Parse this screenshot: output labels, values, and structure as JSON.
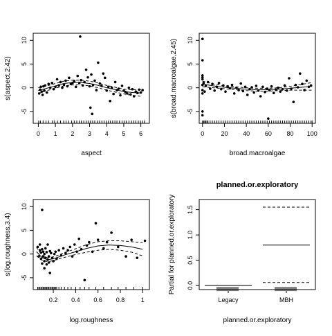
{
  "chart_data": [
    {
      "type": "scatter",
      "title": "",
      "xlabel": "aspect",
      "ylabel": "s(aspect,2.42)",
      "xlim": [
        -0.3,
        6.5
      ],
      "ylim": [
        -7.5,
        11.5
      ],
      "xticks": [
        0,
        1,
        2,
        3,
        4,
        5,
        6
      ],
      "yticks": [
        -5,
        0,
        5,
        10
      ],
      "fit": {
        "x": [
          0,
          0.5,
          1,
          1.5,
          2,
          2.5,
          3,
          3.5,
          4,
          4.5,
          5,
          5.5,
          6
        ],
        "y": [
          -0.6,
          -0.1,
          0.4,
          0.9,
          1.1,
          1.1,
          0.9,
          0.5,
          0.0,
          -0.4,
          -0.8,
          -1.0,
          -1.1
        ]
      },
      "ci_upper": {
        "x": [
          0,
          0.5,
          1,
          1.5,
          2,
          2.5,
          3,
          3.5,
          4,
          4.5,
          5,
          5.5,
          6
        ],
        "y": [
          0.0,
          0.4,
          0.9,
          1.4,
          1.6,
          1.6,
          1.4,
          1.0,
          0.5,
          0.1,
          -0.3,
          -0.4,
          -0.4
        ]
      },
      "ci_lower": {
        "x": [
          0,
          0.5,
          1,
          1.5,
          2,
          2.5,
          3,
          3.5,
          4,
          4.5,
          5,
          5.5,
          6
        ],
        "y": [
          -1.2,
          -0.6,
          -0.1,
          0.4,
          0.6,
          0.6,
          0.4,
          0.0,
          -0.5,
          -0.9,
          -1.3,
          -1.6,
          -1.8
        ]
      },
      "points": {
        "x": [
          0.05,
          0.1,
          0.15,
          0.2,
          0.25,
          0.3,
          0.35,
          0.4,
          0.5,
          0.6,
          0.7,
          0.8,
          0.9,
          1.0,
          1.1,
          1.2,
          1.3,
          1.4,
          1.5,
          1.6,
          1.7,
          1.8,
          1.9,
          2.0,
          2.1,
          2.2,
          2.3,
          2.4,
          2.45,
          2.5,
          2.6,
          2.7,
          2.8,
          2.9,
          3.0,
          3.05,
          3.1,
          3.15,
          3.2,
          3.3,
          3.4,
          3.5,
          3.6,
          3.7,
          3.8,
          3.9,
          4.0,
          4.1,
          4.2,
          4.3,
          4.4,
          4.5,
          4.6,
          4.7,
          4.8,
          4.9,
          5.0,
          5.1,
          5.2,
          5.3,
          5.4,
          5.5,
          5.6,
          5.7,
          5.8,
          5.9,
          6.0,
          6.1
        ],
        "y": [
          -1.2,
          -0.4,
          0.2,
          -0.8,
          -1.5,
          0.3,
          -0.6,
          0.5,
          -1.0,
          0.8,
          0.0,
          1.0,
          -0.3,
          0.2,
          1.8,
          0.5,
          1.2,
          0.0,
          0.6,
          1.5,
          0.3,
          2.1,
          0.8,
          1.0,
          1.4,
          0.2,
          2.5,
          1.0,
          10.8,
          1.6,
          0.5,
          1.2,
          3.8,
          2.2,
          0.3,
          -4.2,
          2.8,
          -5.5,
          0.6,
          1.5,
          -0.5,
          5.3,
          0.9,
          0.4,
          3.0,
          2.1,
          -0.6,
          0.2,
          -2.8,
          0.0,
          -1.3,
          1.2,
          -0.5,
          -0.2,
          -1.6,
          0.4,
          -0.6,
          -0.9,
          -1.2,
          0.0,
          -1.4,
          -0.3,
          -1.8,
          -0.8,
          -1.1,
          -0.4,
          -1.0,
          -0.5
        ]
      },
      "rug": [
        0.02,
        0.12,
        0.28,
        0.45,
        0.6,
        0.82,
        0.95,
        1.12,
        1.3,
        1.48,
        1.62,
        1.78,
        1.95,
        2.1,
        2.25,
        2.4,
        2.52,
        2.66,
        2.8,
        2.93,
        3.05,
        3.18,
        3.3,
        3.45,
        3.58,
        3.72,
        3.85,
        3.98,
        4.1,
        4.22,
        4.35,
        4.48,
        4.6,
        4.75,
        4.9,
        5.02,
        5.15,
        5.3,
        5.45,
        5.58,
        5.7,
        5.85,
        5.98,
        6.1,
        6.2
      ]
    },
    {
      "type": "scatter",
      "title": "",
      "xlabel": "broad.macroalgae",
      "ylabel": "s(broad.macroalgae,2.45)",
      "xlim": [
        -3,
        103
      ],
      "ylim": [
        -7.5,
        11.5
      ],
      "xticks": [
        0,
        20,
        40,
        60,
        80,
        100
      ],
      "yticks": [
        -5,
        0,
        5,
        10
      ],
      "fit": {
        "x": [
          0,
          10,
          20,
          30,
          40,
          50,
          60,
          70,
          80,
          90,
          100
        ],
        "y": [
          0.8,
          0.4,
          0.1,
          -0.1,
          -0.3,
          -0.4,
          -0.4,
          -0.3,
          -0.1,
          0.1,
          0.3
        ]
      },
      "ci_upper": {
        "x": [
          0,
          10,
          20,
          30,
          40,
          50,
          60,
          70,
          80,
          90,
          100
        ],
        "y": [
          1.4,
          0.8,
          0.4,
          0.2,
          0.0,
          -0.1,
          -0.1,
          0.0,
          0.3,
          0.7,
          1.1
        ]
      },
      "ci_lower": {
        "x": [
          0,
          10,
          20,
          30,
          40,
          50,
          60,
          70,
          80,
          90,
          100
        ],
        "y": [
          0.2,
          0.0,
          -0.2,
          -0.4,
          -0.6,
          -0.7,
          -0.7,
          -0.6,
          -0.5,
          -0.5,
          -0.5
        ]
      },
      "points": {
        "x": [
          0,
          0,
          0,
          0,
          0,
          0,
          0,
          0,
          0,
          0,
          1,
          2,
          3,
          5,
          7,
          9,
          11,
          13,
          15,
          17,
          19,
          21,
          23,
          25,
          27,
          29,
          31,
          33,
          35,
          37,
          39,
          41,
          43,
          45,
          47,
          49,
          51,
          53,
          55,
          57,
          59,
          60,
          61,
          63,
          65,
          67,
          69,
          71,
          73,
          75,
          77,
          79,
          81,
          83,
          85,
          87,
          89,
          91,
          93,
          95,
          97,
          99
        ],
        "y": [
          10.3,
          5.8,
          2.6,
          1.8,
          0.6,
          -0.5,
          -1.2,
          -5.0,
          -5.8,
          2.2,
          1.0,
          -0.8,
          0.4,
          1.2,
          -0.2,
          0.8,
          -0.6,
          0.2,
          1.0,
          -0.3,
          0.5,
          -0.8,
          0.3,
          -0.1,
          0.6,
          -1.2,
          0.0,
          -0.5,
          0.9,
          -0.7,
          0.2,
          -1.5,
          -0.3,
          0.1,
          -1.0,
          0.4,
          -0.6,
          -1.8,
          0.2,
          -0.9,
          -0.2,
          -6.5,
          -0.5,
          0.3,
          -1.1,
          -0.4,
          0.0,
          -0.8,
          -0.3,
          0.5,
          -0.6,
          2.0,
          -0.2,
          -3.0,
          0.6,
          0.1,
          3.0,
          0.8,
          -0.5,
          1.5,
          0.2,
          0.5
        ]
      },
      "rug": [
        0,
        1,
        2,
        3,
        4,
        5,
        7,
        9,
        11,
        13,
        15,
        17,
        19,
        21,
        23,
        25,
        27,
        29,
        31,
        33,
        35,
        37,
        39,
        41,
        43,
        45,
        47,
        49,
        51,
        53,
        55,
        57,
        59,
        61,
        63,
        65,
        67,
        69,
        71,
        73,
        75,
        77,
        79,
        81,
        83,
        85,
        87,
        89,
        91,
        93,
        95,
        97,
        99,
        100
      ]
    },
    {
      "type": "scatter",
      "title": "",
      "xlabel": "log.roughness",
      "ylabel": "s(log.roughness,3.4)",
      "xlim": [
        0.02,
        1.06
      ],
      "ylim": [
        -7.5,
        11.5
      ],
      "xticks": [
        0.2,
        0.4,
        0.6,
        0.8,
        1.0
      ],
      "yticks": [
        -5,
        0,
        5,
        10
      ],
      "fit": {
        "x": [
          0.05,
          0.1,
          0.15,
          0.2,
          0.25,
          0.3,
          0.4,
          0.5,
          0.6,
          0.7,
          0.8,
          0.9,
          1.0
        ],
        "y": [
          0.5,
          -0.8,
          -1.2,
          -1.0,
          -0.6,
          -0.2,
          0.5,
          1.2,
          1.7,
          1.9,
          1.8,
          1.5,
          1.0
        ]
      },
      "ci_upper": {
        "x": [
          0.05,
          0.1,
          0.15,
          0.2,
          0.25,
          0.3,
          0.4,
          0.5,
          0.6,
          0.7,
          0.8,
          0.9,
          1.0
        ],
        "y": [
          1.4,
          -0.3,
          -0.8,
          -0.6,
          -0.2,
          0.3,
          1.1,
          2.0,
          2.6,
          2.8,
          2.8,
          2.6,
          2.4
        ]
      },
      "ci_lower": {
        "x": [
          0.05,
          0.1,
          0.15,
          0.2,
          0.25,
          0.3,
          0.4,
          0.5,
          0.6,
          0.7,
          0.8,
          0.9,
          1.0
        ],
        "y": [
          -0.4,
          -1.3,
          -1.6,
          -1.4,
          -1.0,
          -0.7,
          -0.1,
          0.4,
          0.8,
          1.0,
          0.8,
          0.4,
          -0.4
        ]
      },
      "points": {
        "x": [
          0.06,
          0.07,
          0.08,
          0.08,
          0.09,
          0.09,
          0.1,
          0.1,
          0.1,
          0.11,
          0.11,
          0.12,
          0.12,
          0.12,
          0.13,
          0.13,
          0.14,
          0.14,
          0.15,
          0.15,
          0.16,
          0.16,
          0.17,
          0.17,
          0.18,
          0.19,
          0.2,
          0.21,
          0.22,
          0.23,
          0.25,
          0.27,
          0.29,
          0.31,
          0.33,
          0.35,
          0.37,
          0.39,
          0.41,
          0.43,
          0.45,
          0.48,
          0.5,
          0.52,
          0.55,
          0.58,
          0.6,
          0.65,
          0.68,
          0.72,
          0.78,
          0.85,
          0.9,
          0.95,
          1.02
        ],
        "y": [
          1.5,
          -0.5,
          2.0,
          0.8,
          -1.0,
          0.3,
          9.3,
          -2.0,
          1.0,
          -0.5,
          0.5,
          -1.5,
          0.0,
          -3.0,
          1.2,
          -0.8,
          -2.2,
          0.4,
          -1.2,
          2.0,
          -0.5,
          -1.8,
          0.6,
          -4.0,
          0.2,
          -0.8,
          -1.5,
          0.0,
          0.5,
          -1.0,
          0.8,
          -0.3,
          1.2,
          0.2,
          0.8,
          1.5,
          -0.5,
          2.0,
          0.5,
          3.2,
          1.0,
          -5.5,
          1.8,
          2.5,
          0.5,
          6.5,
          3.0,
          1.2,
          2.5,
          4.5,
          1.5,
          -0.5,
          3.0,
          -0.8,
          2.8
        ]
      },
      "rug": [
        0.06,
        0.07,
        0.08,
        0.09,
        0.1,
        0.11,
        0.12,
        0.13,
        0.14,
        0.15,
        0.16,
        0.17,
        0.18,
        0.19,
        0.2,
        0.21,
        0.22,
        0.23,
        0.25,
        0.27,
        0.3,
        0.33,
        0.36,
        0.4,
        0.44,
        0.48,
        0.52,
        0.58,
        0.65,
        0.72,
        0.78,
        0.85,
        0.92,
        1.0
      ]
    },
    {
      "type": "bar",
      "title": "planned.or.exploratory",
      "xlabel": "planned.or.exploratory",
      "ylabel": "Partial for planned.or.exploratory",
      "categories": [
        "Legacy",
        "MBH"
      ],
      "values": [
        0.0,
        0.8
      ],
      "ci_upper": [
        0.0,
        1.55
      ],
      "ci_lower": [
        0.0,
        0.06
      ],
      "ylim": [
        -0.08,
        1.7
      ],
      "yticks": [
        0.0,
        0.5,
        1.0,
        1.5
      ],
      "yticklabels": [
        "0.0",
        "0.5",
        "1.0",
        "1.5"
      ]
    }
  ]
}
